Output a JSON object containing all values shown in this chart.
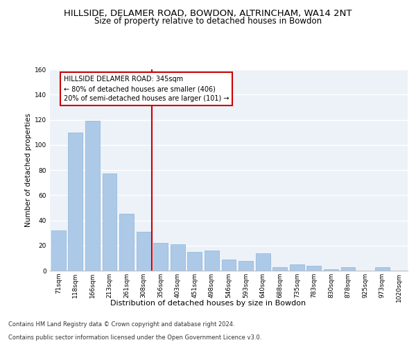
{
  "title": "HILLSIDE, DELAMER ROAD, BOWDON, ALTRINCHAM, WA14 2NT",
  "subtitle": "Size of property relative to detached houses in Bowdon",
  "xlabel": "Distribution of detached houses by size in Bowdon",
  "ylabel": "Number of detached properties",
  "categories": [
    "71sqm",
    "118sqm",
    "166sqm",
    "213sqm",
    "261sqm",
    "308sqm",
    "356sqm",
    "403sqm",
    "451sqm",
    "498sqm",
    "546sqm",
    "593sqm",
    "640sqm",
    "688sqm",
    "735sqm",
    "783sqm",
    "830sqm",
    "878sqm",
    "925sqm",
    "973sqm",
    "1020sqm"
  ],
  "values": [
    32,
    110,
    119,
    77,
    45,
    31,
    22,
    21,
    15,
    16,
    9,
    8,
    14,
    3,
    5,
    4,
    1,
    3,
    0,
    3,
    0
  ],
  "bar_color": "#adc9e8",
  "bar_edge_color": "#8ab4d8",
  "vline_color": "#cc0000",
  "annotation_line1": "HILLSIDE DELAMER ROAD: 345sqm",
  "annotation_line2": "← 80% of detached houses are smaller (406)",
  "annotation_line3": "20% of semi-detached houses are larger (101) →",
  "ylim": [
    0,
    160
  ],
  "yticks": [
    0,
    20,
    40,
    60,
    80,
    100,
    120,
    140,
    160
  ],
  "background_color": "#edf2f8",
  "grid_color": "#ffffff",
  "footer_line1": "Contains HM Land Registry data © Crown copyright and database right 2024.",
  "footer_line2": "Contains public sector information licensed under the Open Government Licence v3.0.",
  "title_fontsize": 9.5,
  "subtitle_fontsize": 8.5,
  "xlabel_fontsize": 8,
  "ylabel_fontsize": 7.5,
  "tick_fontsize": 6.5,
  "annotation_fontsize": 7,
  "footer_fontsize": 6
}
